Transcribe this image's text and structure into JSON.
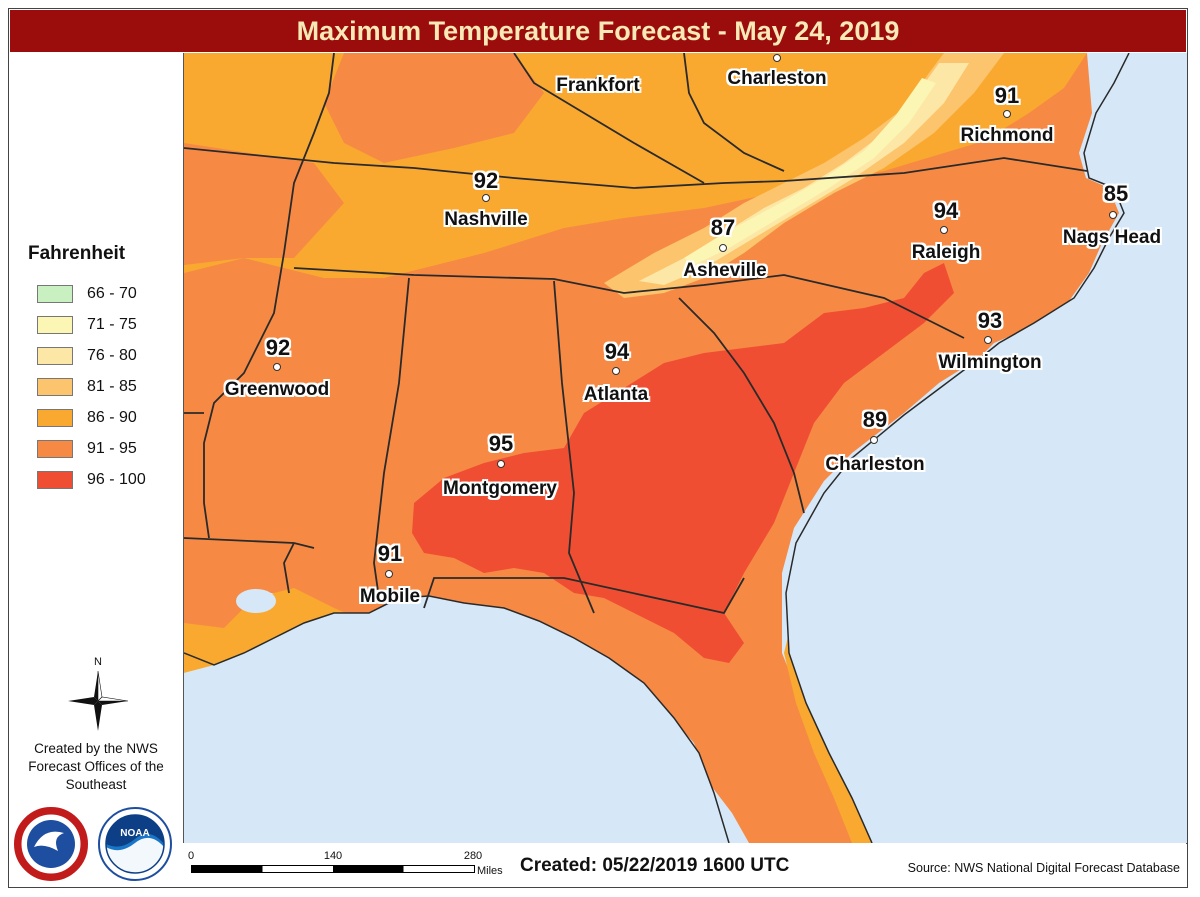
{
  "title": "Maximum Temperature Forecast - May 24, 2019",
  "legend": {
    "title": "Fahrenheit",
    "items": [
      {
        "label": "66 - 70",
        "color": "#c8f0c0"
      },
      {
        "label": "71 - 75",
        "color": "#fbf6b4"
      },
      {
        "label": "76 - 80",
        "color": "#fde7a6"
      },
      {
        "label": "81 - 85",
        "color": "#fcc46d"
      },
      {
        "label": "86 - 90",
        "color": "#f9a92f"
      },
      {
        "label": "91 - 95",
        "color": "#f68a45"
      },
      {
        "label": "96 - 100",
        "color": "#f04e32"
      }
    ]
  },
  "compass": {
    "north_label": "N"
  },
  "credits": [
    "Created by the NWS",
    "Forecast Offices of the",
    "Southeast"
  ],
  "logos": [
    {
      "name": "NATIONAL WEATHER SERVICE",
      "icon": "nws-logo"
    },
    {
      "name": "NOAA",
      "icon": "noaa-logo"
    }
  ],
  "cities": [
    {
      "name": "Frankfort",
      "temp": ""
    },
    {
      "name": "Charleston",
      "temp": ""
    },
    {
      "name": "Richmond",
      "temp": "91"
    },
    {
      "name": "Nashville",
      "temp": "92"
    },
    {
      "name": "Nags Head",
      "temp": "85"
    },
    {
      "name": "Raleigh",
      "temp": "94"
    },
    {
      "name": "Asheville",
      "temp": "87"
    },
    {
      "name": "Wilmington",
      "temp": "93"
    },
    {
      "name": "Greenwood",
      "temp": "92"
    },
    {
      "name": "Atlanta",
      "temp": "94"
    },
    {
      "name": "Montgomery",
      "temp": "95"
    },
    {
      "name": "Charleston",
      "temp": "89"
    },
    {
      "name": "Mobile",
      "temp": "91"
    }
  ],
  "scale": {
    "ticks": [
      "0",
      "140",
      "280"
    ],
    "unit": "Miles"
  },
  "created": "Created: 05/22/2019 1600 UTC",
  "source": "Source: NWS National Digital Forecast Database"
}
